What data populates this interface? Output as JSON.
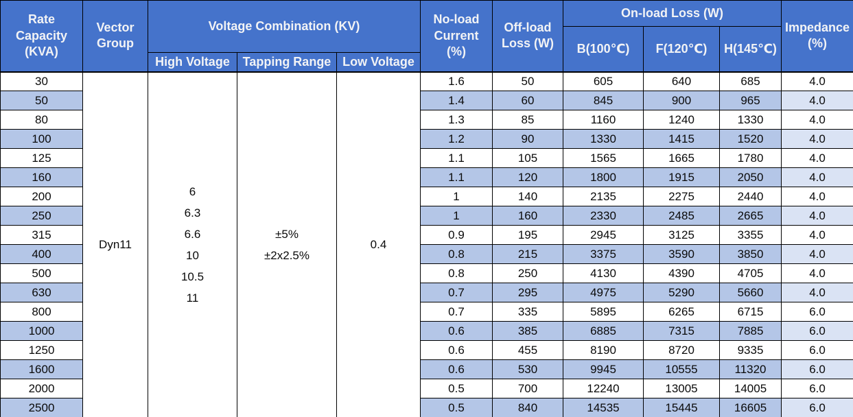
{
  "colors": {
    "header_bg": "#4573CB",
    "header_text": "#F2F3F5",
    "row_bg": "#FFFFFF",
    "stripe_bg": "#B4C6E7",
    "stripe_light_bg": "#DAE3F4",
    "border": "#000000",
    "body_text": "#0A0A0A"
  },
  "header": {
    "rate_capacity": "Rate Capacity (KVA)",
    "vector_group": "Vector Group",
    "voltage_combination": "Voltage Combination (KV)",
    "high_voltage": "High Voltage",
    "tapping_range": "Tapping Range",
    "low_voltage": "Low Voltage",
    "no_load_current": "No-load Current (%)",
    "off_load_loss": "Off-load Loss (W)",
    "on_load_loss": "On-load Loss (W)",
    "b100": "B(100℃)",
    "f120": "F(120℃)",
    "h145": "H(145℃)",
    "impedance": "Impedance (%)"
  },
  "merged": {
    "vector_group": "Dyn11",
    "high_voltage": [
      "6",
      "6.3",
      "6.6",
      "10",
      "10.5",
      "11"
    ],
    "tapping_range": [
      "±5%",
      "±2x2.5%"
    ],
    "low_voltage": "0.4"
  },
  "chart_data": {
    "type": "table",
    "columns": [
      "Rate Capacity (KVA)",
      "No-load Current (%)",
      "Off-load Loss (W)",
      "B(100℃)",
      "F(120℃)",
      "H(145℃)",
      "Impedance (%)"
    ],
    "shared_columns": {
      "Vector Group": "Dyn11",
      "High Voltage (KV)": "6 / 6.3 / 6.6 / 10 / 10.5 / 11",
      "Tapping Range": "±5% , ±2x2.5%",
      "Low Voltage (KV)": "0.4"
    },
    "rows": [
      [
        "30",
        "1.6",
        "50",
        "605",
        "640",
        "685",
        "4.0"
      ],
      [
        "50",
        "1.4",
        "60",
        "845",
        "900",
        "965",
        "4.0"
      ],
      [
        "80",
        "1.3",
        "85",
        "1160",
        "1240",
        "1330",
        "4.0"
      ],
      [
        "100",
        "1.2",
        "90",
        "1330",
        "1415",
        "1520",
        "4.0"
      ],
      [
        "125",
        "1.1",
        "105",
        "1565",
        "1665",
        "1780",
        "4.0"
      ],
      [
        "160",
        "1.1",
        "120",
        "1800",
        "1915",
        "2050",
        "4.0"
      ],
      [
        "200",
        "1",
        "140",
        "2135",
        "2275",
        "2440",
        "4.0"
      ],
      [
        "250",
        "1",
        "160",
        "2330",
        "2485",
        "2665",
        "4.0"
      ],
      [
        "315",
        "0.9",
        "195",
        "2945",
        "3125",
        "3355",
        "4.0"
      ],
      [
        "400",
        "0.8",
        "215",
        "3375",
        "3590",
        "3850",
        "4.0"
      ],
      [
        "500",
        "0.8",
        "250",
        "4130",
        "4390",
        "4705",
        "4.0"
      ],
      [
        "630",
        "0.7",
        "295",
        "4975",
        "5290",
        "5660",
        "4.0"
      ],
      [
        "800",
        "0.7",
        "335",
        "5895",
        "6265",
        "6715",
        "6.0"
      ],
      [
        "1000",
        "0.6",
        "385",
        "6885",
        "7315",
        "7885",
        "6.0"
      ],
      [
        "1250",
        "0.6",
        "455",
        "8190",
        "8720",
        "9335",
        "6.0"
      ],
      [
        "1600",
        "0.6",
        "530",
        "9945",
        "10555",
        "11320",
        "6.0"
      ],
      [
        "2000",
        "0.5",
        "700",
        "12240",
        "13005",
        "14005",
        "6.0"
      ],
      [
        "2500",
        "0.5",
        "840",
        "14535",
        "15445",
        "16605",
        "6.0"
      ]
    ]
  }
}
